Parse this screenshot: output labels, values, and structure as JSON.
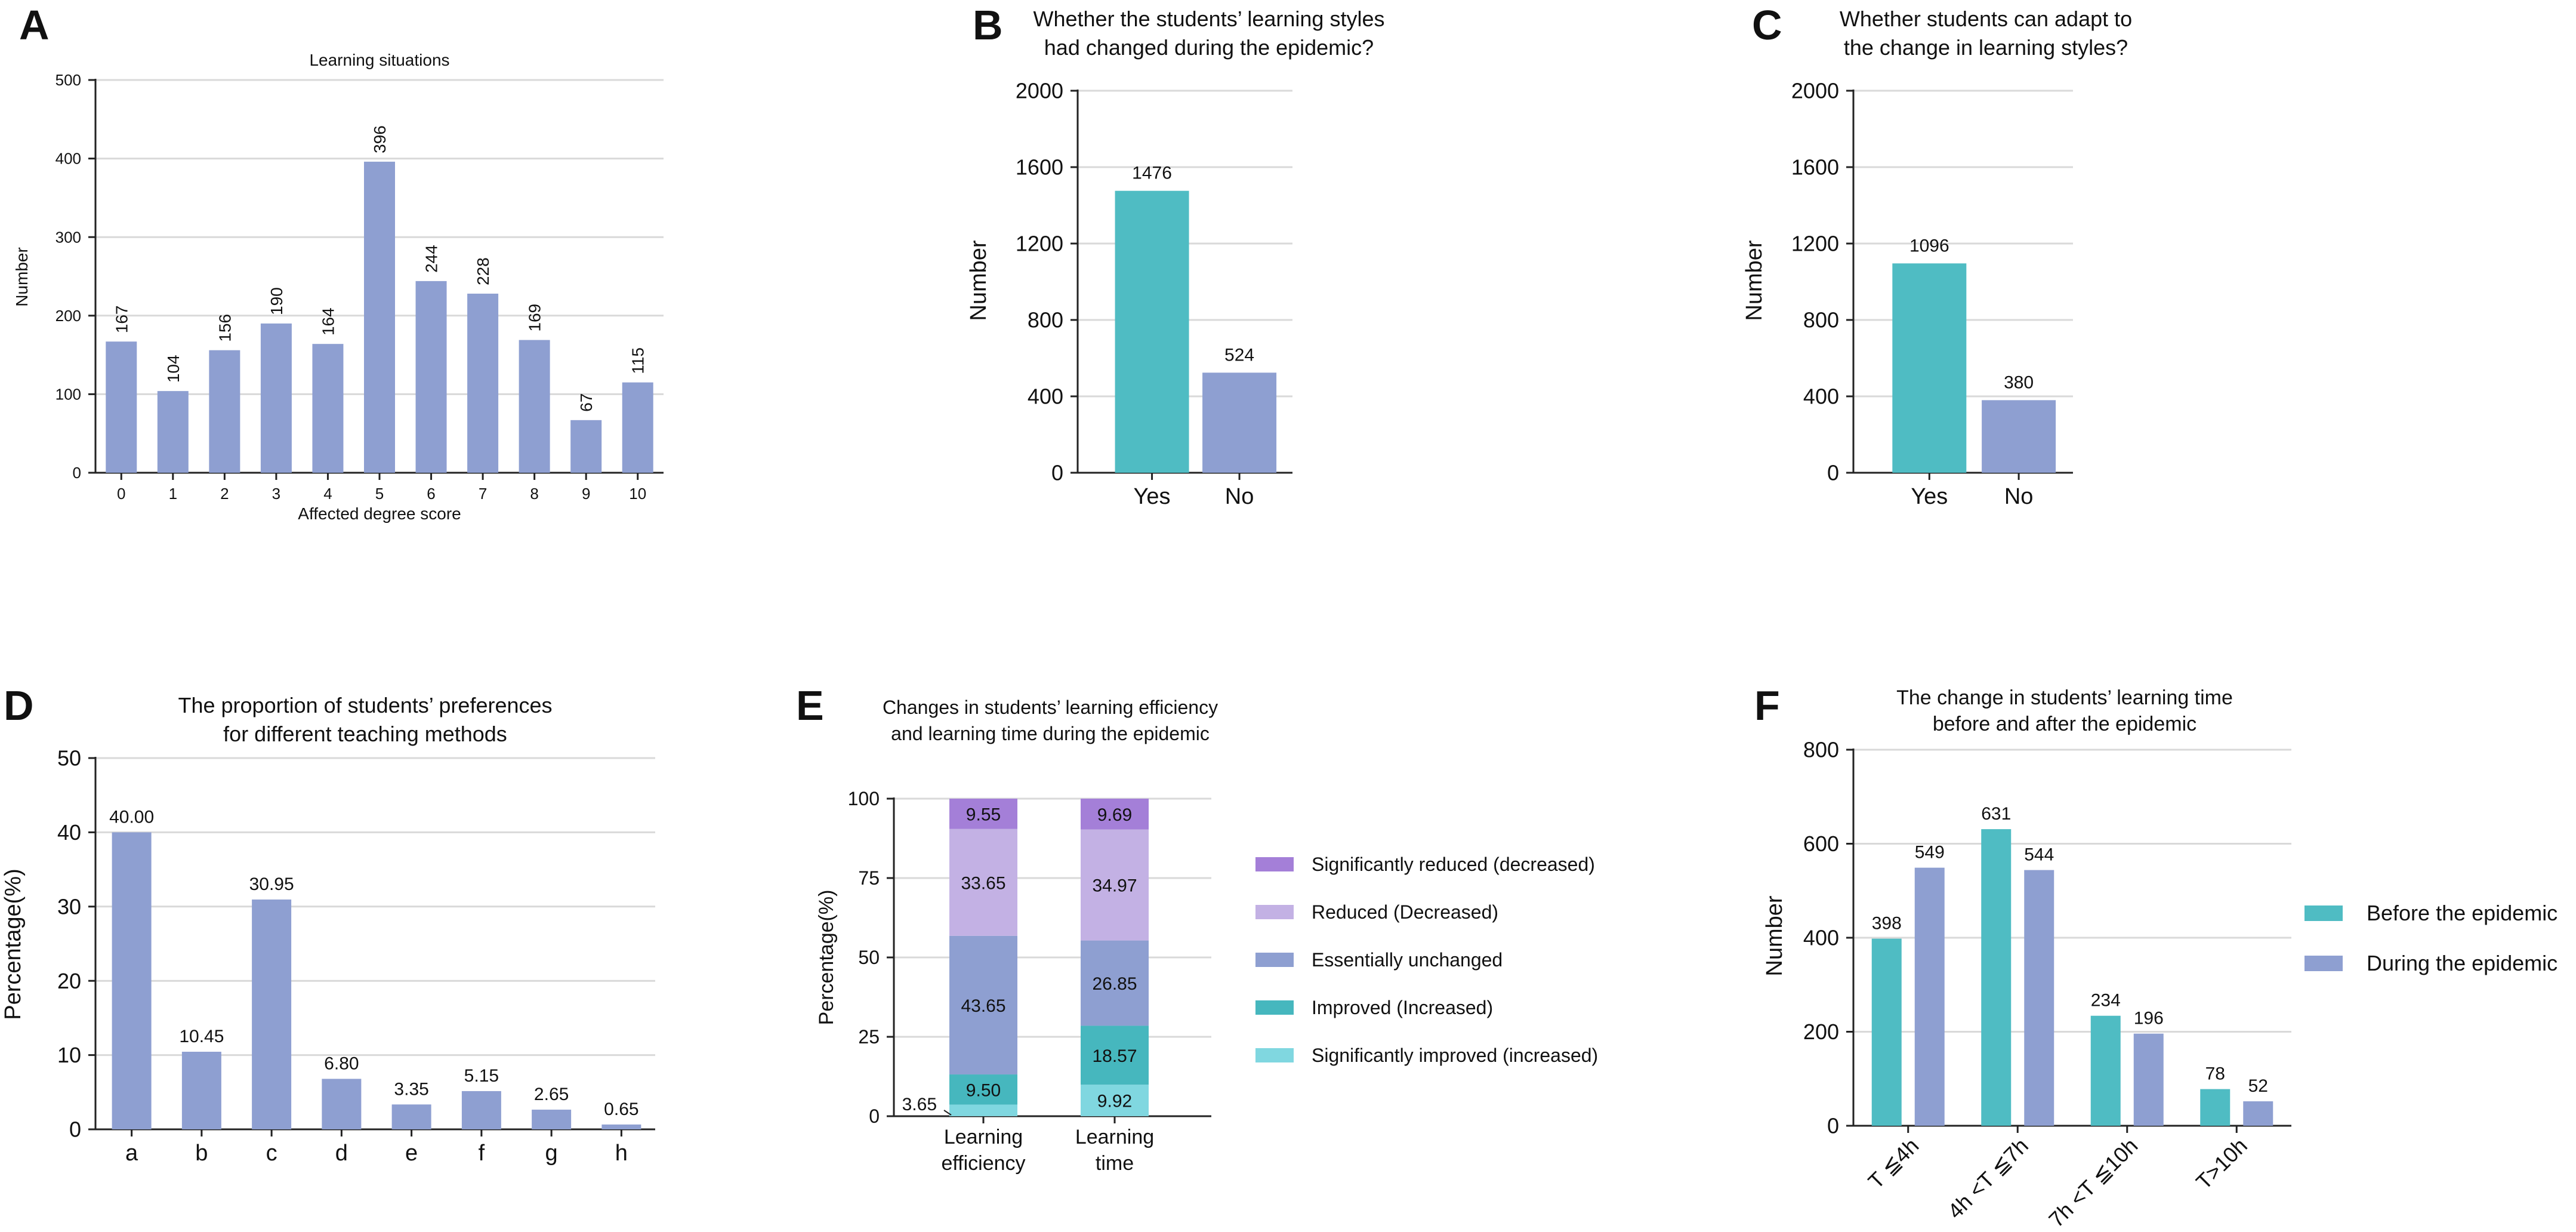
{
  "colors": {
    "purple": "#8e9fd1",
    "teal": "#4fbcc3",
    "grid": "#d9d9d9",
    "sig_reduced": "#a47fd8",
    "reduced": "#c3b1e4",
    "unchanged": "#8e9fd1",
    "improved": "#46b7be",
    "sig_improved": "#80d7e0"
  },
  "chart_data": [
    {
      "panel": "A",
      "type": "bar",
      "title": "Learning situations",
      "xlabel": "Affected degree score",
      "ylabel": "Number",
      "ylim": [
        0,
        500
      ],
      "yticks": [
        "0",
        "100",
        "200",
        "300",
        "400",
        "500"
      ],
      "categories": [
        "0",
        "1",
        "2",
        "3",
        "4",
        "5",
        "6",
        "7",
        "8",
        "9",
        "10"
      ],
      "values": [
        167,
        104,
        156,
        190,
        164,
        396,
        244,
        228,
        169,
        67,
        115
      ],
      "labels": [
        "167",
        "104",
        "156",
        "190",
        "164",
        "396",
        "244",
        "228",
        "169",
        "67",
        "115"
      ]
    },
    {
      "panel": "B",
      "type": "bar",
      "title_lines": [
        "Whether the students’ learning styles",
        "had changed during the epidemic?"
      ],
      "ylabel": "Number",
      "ylim": [
        0,
        2000
      ],
      "yticks": [
        "0",
        "400",
        "800",
        "1200",
        "1600",
        "2000"
      ],
      "categories": [
        "Yes",
        "No"
      ],
      "values": [
        1476,
        524
      ],
      "labels": [
        "1476",
        "524"
      ]
    },
    {
      "panel": "C",
      "type": "bar",
      "title_lines": [
        "Whether students can adapt to",
        "the change in learning styles?"
      ],
      "ylabel": "Number",
      "ylim": [
        0,
        2000
      ],
      "yticks": [
        "0",
        "400",
        "800",
        "1200",
        "1600",
        "2000"
      ],
      "categories": [
        "Yes",
        "No"
      ],
      "values": [
        1096,
        380
      ],
      "labels": [
        "1096",
        "380"
      ]
    },
    {
      "panel": "D",
      "type": "bar",
      "title_lines": [
        "The proportion of students’ preferences",
        "for different teaching methods"
      ],
      "ylabel": "Percentage(%)",
      "ylim": [
        0,
        50
      ],
      "yticks": [
        "0",
        "10",
        "20",
        "30",
        "40",
        "50"
      ],
      "categories": [
        "a",
        "b",
        "c",
        "d",
        "e",
        "f",
        "g",
        "h"
      ],
      "values": [
        40.0,
        10.45,
        30.95,
        6.8,
        3.35,
        5.15,
        2.65,
        0.65
      ],
      "labels": [
        "40.00",
        "10.45",
        "30.95",
        "6.80",
        "3.35",
        "5.15",
        "2.65",
        "0.65"
      ]
    },
    {
      "panel": "E",
      "type": "stacked-bar",
      "title_lines": [
        "Changes in students’ learning efficiency",
        "and learning time during the epidemic"
      ],
      "ylabel": "Percentage(%)",
      "ylim": [
        0,
        100
      ],
      "yticks": [
        "0",
        "25",
        "50",
        "75",
        "100"
      ],
      "categories": [
        [
          "Learning",
          "efficiency"
        ],
        [
          "Learning",
          "time"
        ]
      ],
      "series": [
        {
          "name": "Significantly improved (increased)",
          "values": [
            3.65,
            9.92
          ],
          "labels": [
            "3.65",
            "9.92"
          ]
        },
        {
          "name": "Improved (Increased)",
          "values": [
            9.5,
            18.57
          ],
          "labels": [
            "9.50",
            "18.57"
          ]
        },
        {
          "name": "Essentially unchanged",
          "values": [
            43.65,
            26.85
          ],
          "labels": [
            "43.65",
            "26.85"
          ]
        },
        {
          "name": "Reduced (Decreased)",
          "values": [
            33.65,
            34.97
          ],
          "labels": [
            "33.65",
            "34.97"
          ]
        },
        {
          "name": "Significantly reduced (decreased)",
          "values": [
            9.55,
            9.69
          ],
          "labels": [
            "9.55",
            "9.69"
          ]
        }
      ],
      "legend": [
        "Significantly reduced (decreased)",
        "Reduced (Decreased)",
        "Essentially unchanged",
        "Improved (Increased)",
        "Significantly improved (increased)"
      ]
    },
    {
      "panel": "F",
      "type": "bar",
      "title_lines": [
        "The change in students’ learning time",
        "before and after the epidemic"
      ],
      "ylabel": "Number",
      "ylim": [
        0,
        800
      ],
      "yticks": [
        "0",
        "200",
        "400",
        "600",
        "800"
      ],
      "categories": [
        "T ≦4h",
        "4h <T ≦7h",
        "7h <T ≦10h",
        "T>10h"
      ],
      "series": [
        {
          "name": "Before the epidemic",
          "values": [
            398,
            631,
            234,
            78
          ],
          "labels": [
            "398",
            "631",
            "234",
            "78"
          ]
        },
        {
          "name": "During the epidemic",
          "values": [
            549,
            544,
            196,
            52
          ],
          "labels": [
            "549",
            "544",
            "196",
            "52"
          ]
        }
      ]
    }
  ]
}
